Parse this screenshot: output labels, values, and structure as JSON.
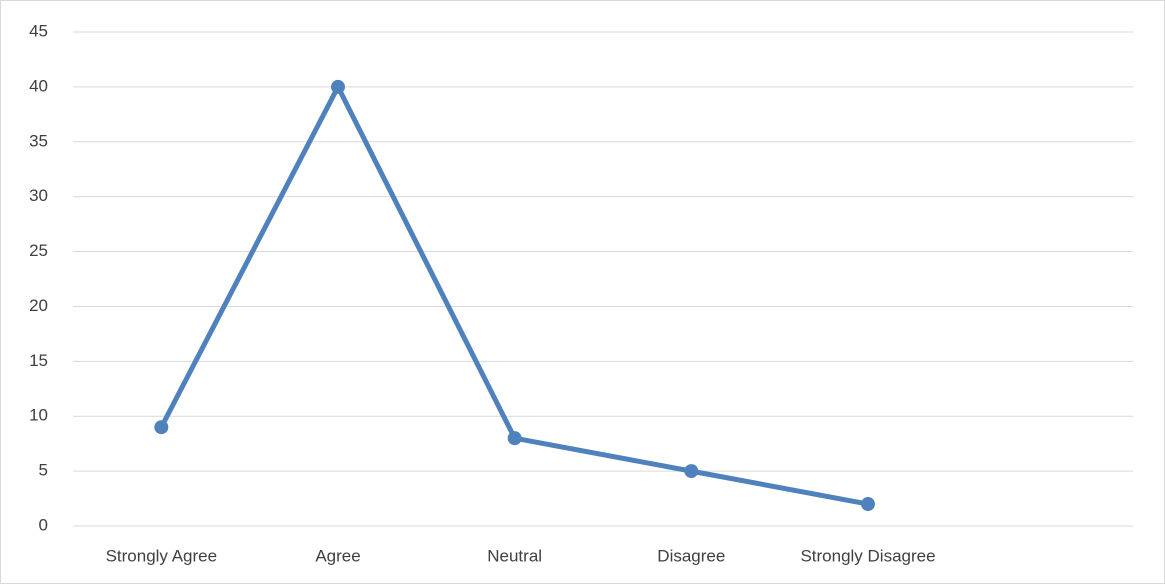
{
  "chart_data": {
    "type": "line",
    "categories": [
      "Strongly Agree",
      "Agree",
      "Neutral",
      "Disagree",
      "Strongly Disagree",
      null
    ],
    "values": [
      9,
      40,
      8,
      5,
      2,
      null
    ],
    "color": "#4f81bd",
    "ylim": [
      0,
      45
    ],
    "yticks": [
      0,
      5,
      10,
      15,
      20,
      25,
      30,
      35,
      40,
      45
    ],
    "grid": true
  }
}
